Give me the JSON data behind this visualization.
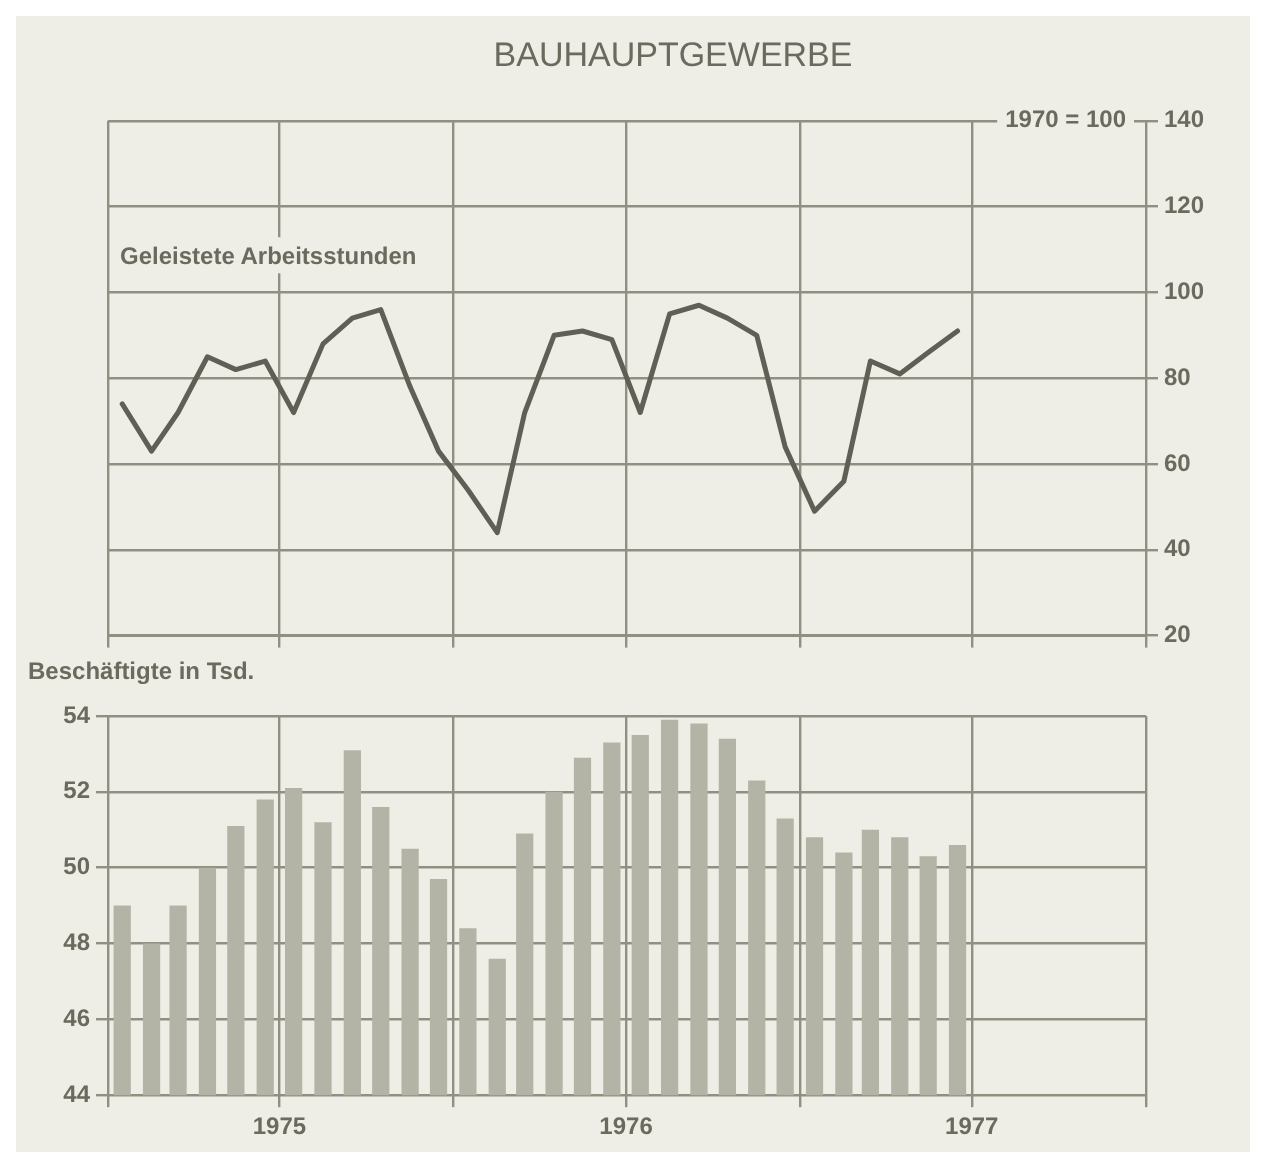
{
  "chart_data": [
    {
      "type": "line",
      "title": "BAUHAUPTGEWERBE",
      "y2label": "1970 = 100",
      "x": [
        "1975-01-16",
        "1975-02-16",
        "1975-03-16",
        "1975-04-16",
        "1975-05-16",
        "1975-06-16",
        "1975-07-16",
        "1975-08-16",
        "1975-09-16",
        "1975-10-16",
        "1975-11-16",
        "1975-12-16",
        "1976-01-16",
        "1976-02-16",
        "1976-03-16",
        "1976-04-16",
        "1976-05-16",
        "1976-06-16",
        "1976-07-16",
        "1976-08-16",
        "1976-09-16",
        "1976-10-16",
        "1976-11-16",
        "1976-12-16",
        "1977-01-16",
        "1977-02-16",
        "1977-03-16",
        "1977-04-16",
        "1977-05-16",
        "1977-06-16"
      ],
      "xlim": [
        "1975-01-01",
        "1978-01-01"
      ],
      "xticks": [
        {
          "value": "1975-01-01",
          "label": null
        },
        {
          "value": "1975-07-01",
          "label": null
        },
        {
          "value": "1976-01-01",
          "label": null
        },
        {
          "value": "1976-07-01",
          "label": null
        },
        {
          "value": "1977-01-01",
          "label": null
        },
        {
          "value": "1977-07-01",
          "label": null
        },
        {
          "value": "1978-01-01",
          "label": null
        }
      ],
      "y2lim": [
        20,
        140
      ],
      "y2ticks": [
        20,
        40,
        60,
        80,
        100,
        120,
        140
      ],
      "grid": true,
      "legend": false,
      "tick_labels": "y",
      "series": [
        {
          "name": "Geleistete Arbeitsstunden",
          "color": "#5f5f55",
          "axis": "y2",
          "values": [
            74,
            63,
            72,
            85,
            82,
            84,
            72,
            88,
            94,
            96,
            78,
            63,
            54,
            44,
            72,
            90,
            91,
            89,
            72,
            95,
            97,
            94,
            90,
            64,
            49,
            56,
            84,
            81,
            86,
            91
          ]
        }
      ]
    },
    {
      "type": "bar",
      "x": [
        "1975-01-16",
        "1975-02-16",
        "1975-03-16",
        "1975-04-16",
        "1975-05-16",
        "1975-06-16",
        "1975-07-16",
        "1975-08-16",
        "1975-09-16",
        "1975-10-16",
        "1975-11-16",
        "1975-12-16",
        "1976-01-16",
        "1976-02-16",
        "1976-03-16",
        "1976-04-16",
        "1976-05-16",
        "1976-06-16",
        "1976-07-16",
        "1976-08-16",
        "1976-09-16",
        "1976-10-16",
        "1976-11-16",
        "1976-12-16",
        "1977-01-16",
        "1977-02-16",
        "1977-03-16",
        "1977-04-16",
        "1977-05-16",
        "1977-06-16"
      ],
      "xlim": [
        "1975-01-01",
        "1978-01-01"
      ],
      "xticks": [
        {
          "value": "1975-01-01",
          "label": null
        },
        {
          "value": "1975-07-01",
          "label": "1975"
        },
        {
          "value": "1976-01-01",
          "label": null
        },
        {
          "value": "1976-07-01",
          "label": "1976"
        },
        {
          "value": "1977-01-01",
          "label": null
        },
        {
          "value": "1977-07-01",
          "label": "1977"
        },
        {
          "value": "1978-01-01",
          "label": null
        }
      ],
      "ylim": [
        44,
        54
      ],
      "yticks": [
        44,
        46,
        48,
        50,
        52,
        54
      ],
      "grid": true,
      "legend": false,
      "series": [
        {
          "name": "Beschäftigte in Tsd.",
          "color": "#b3b3a6",
          "values": [
            49.0,
            48.0,
            49.0,
            50.0,
            51.1,
            51.8,
            52.1,
            51.2,
            53.1,
            51.6,
            50.5,
            49.7,
            48.4,
            47.6,
            50.9,
            52.0,
            52.9,
            53.3,
            53.5,
            53.9,
            53.8,
            53.4,
            52.3,
            51.3,
            50.8,
            50.4,
            51.0,
            50.8,
            50.3,
            50.6
          ]
        }
      ]
    }
  ]
}
